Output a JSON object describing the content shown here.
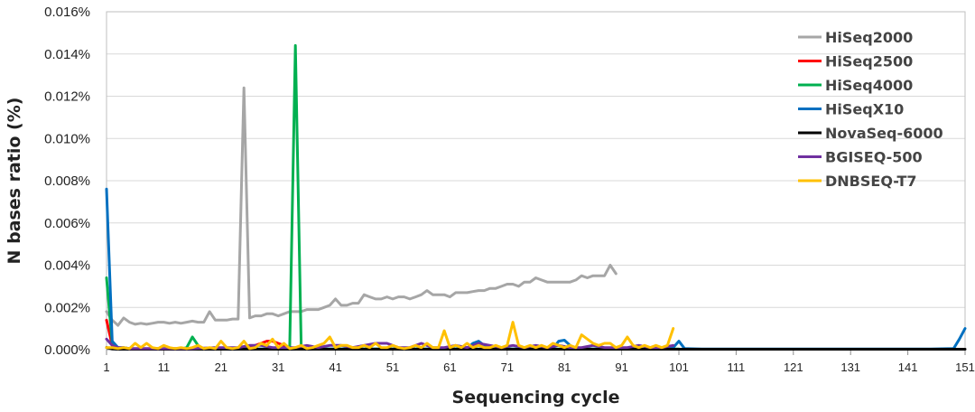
{
  "chart_data": {
    "type": "line",
    "xlabel": "Sequencing cycle",
    "ylabel": "N bases ratio (%)",
    "xlim": [
      1,
      151
    ],
    "ylim": [
      0,
      0.016
    ],
    "x_ticks": [
      "1",
      "11",
      "21",
      "31",
      "41",
      "51",
      "61",
      "71",
      "81",
      "91",
      "101",
      "111",
      "121",
      "131",
      "141",
      "151"
    ],
    "y_ticks": [
      "0.000%",
      "0.002%",
      "0.004%",
      "0.006%",
      "0.008%",
      "0.010%",
      "0.012%",
      "0.014%",
      "0.016%"
    ],
    "grid": "horizontal",
    "legend_position": "top-right",
    "series": [
      {
        "name": "HiSeq2000",
        "color": "#a6a6a6",
        "x": [
          1,
          2,
          3,
          4,
          5,
          6,
          7,
          8,
          9,
          10,
          11,
          12,
          13,
          14,
          15,
          16,
          17,
          18,
          19,
          20,
          21,
          22,
          23,
          24,
          25,
          26,
          27,
          28,
          29,
          30,
          31,
          32,
          33,
          34,
          35,
          36,
          37,
          38,
          39,
          40,
          41,
          42,
          43,
          44,
          45,
          46,
          47,
          48,
          49,
          50,
          51,
          52,
          53,
          54,
          55,
          56,
          57,
          58,
          59,
          60,
          61,
          62,
          63,
          64,
          65,
          66,
          67,
          68,
          69,
          70,
          71,
          72,
          73,
          74,
          75,
          76,
          77,
          78,
          79,
          80,
          81,
          82,
          83,
          84,
          85,
          86,
          87,
          88,
          89,
          90
        ],
        "y": [
          0.0018,
          0.0014,
          0.00115,
          0.0015,
          0.0013,
          0.0012,
          0.00125,
          0.0012,
          0.00125,
          0.0013,
          0.0013,
          0.00125,
          0.0013,
          0.00125,
          0.0013,
          0.00135,
          0.0013,
          0.0013,
          0.0018,
          0.0014,
          0.0014,
          0.0014,
          0.00145,
          0.00145,
          0.0124,
          0.0015,
          0.0016,
          0.0016,
          0.0017,
          0.0017,
          0.0016,
          0.0017,
          0.0018,
          0.0018,
          0.0018,
          0.0019,
          0.0019,
          0.0019,
          0.002,
          0.0021,
          0.0024,
          0.0021,
          0.0021,
          0.0022,
          0.0022,
          0.0026,
          0.0025,
          0.0024,
          0.0024,
          0.0025,
          0.0024,
          0.0025,
          0.0025,
          0.0024,
          0.0025,
          0.0026,
          0.0028,
          0.0026,
          0.0026,
          0.0026,
          0.0025,
          0.0027,
          0.0027,
          0.0027,
          0.00275,
          0.0028,
          0.0028,
          0.0029,
          0.0029,
          0.003,
          0.0031,
          0.0031,
          0.003,
          0.0032,
          0.0032,
          0.0034,
          0.0033,
          0.0032,
          0.0032,
          0.0032,
          0.0032,
          0.0032,
          0.0033,
          0.0035,
          0.0034,
          0.0035,
          0.0035,
          0.0035,
          0.004,
          0.0036
        ]
      },
      {
        "name": "HiSeq2500",
        "color": "#ff0000",
        "x": [
          1,
          2,
          3,
          4,
          5,
          6,
          7,
          8,
          9,
          10,
          12,
          14,
          16,
          18,
          20,
          22,
          24,
          26,
          27,
          28,
          29,
          30,
          31,
          32,
          33,
          34,
          36,
          38,
          40,
          42,
          44,
          46,
          48,
          50,
          55,
          60,
          65,
          70,
          75,
          80,
          85,
          90,
          95,
          100,
          101
        ],
        "y": [
          0.0014,
          0.0002,
          0.0001,
          5e-05,
          3e-05,
          3e-05,
          2e-05,
          2e-05,
          2e-05,
          2e-05,
          2e-05,
          2e-05,
          2e-05,
          2e-05,
          2e-05,
          2e-05,
          3e-05,
          0.0001,
          0.0002,
          0.0003,
          0.0004,
          0.0004,
          0.0003,
          0.0002,
          0.0001,
          5e-05,
          3e-05,
          2e-05,
          2e-05,
          2e-05,
          2e-05,
          2e-05,
          2e-05,
          2e-05,
          2e-05,
          2e-05,
          2e-05,
          2e-05,
          2e-05,
          2e-05,
          2e-05,
          2e-05,
          2e-05,
          2e-05,
          2e-05
        ]
      },
      {
        "name": "HiSeq4000",
        "color": "#00b050",
        "x": [
          1,
          2,
          3,
          4,
          5,
          6,
          8,
          10,
          12,
          14,
          15,
          16,
          17,
          18,
          20,
          22,
          24,
          26,
          28,
          30,
          32,
          33,
          34,
          35,
          36,
          38,
          40,
          45,
          50,
          55,
          60,
          65,
          70,
          75,
          80,
          85,
          90,
          95,
          100,
          101
        ],
        "y": [
          0.0034,
          0.0003,
          0.0001,
          5e-05,
          3e-05,
          3e-05,
          3e-05,
          3e-05,
          3e-05,
          3e-05,
          0.0001,
          0.0006,
          0.0002,
          3e-05,
          3e-05,
          3e-05,
          3e-05,
          3e-05,
          3e-05,
          3e-05,
          3e-05,
          0.0001,
          0.0144,
          0.0002,
          3e-05,
          3e-05,
          3e-05,
          3e-05,
          3e-05,
          3e-05,
          3e-05,
          3e-05,
          3e-05,
          3e-05,
          3e-05,
          3e-05,
          3e-05,
          3e-05,
          3e-05,
          3e-05
        ]
      },
      {
        "name": "HiSeqX10",
        "color": "#0070c0",
        "x": [
          1,
          2,
          3,
          4,
          5,
          6,
          8,
          10,
          15,
          20,
          25,
          30,
          35,
          40,
          45,
          50,
          55,
          60,
          64,
          65,
          66,
          67,
          68,
          70,
          75,
          79,
          80,
          81,
          82,
          83,
          85,
          90,
          95,
          100,
          101,
          102,
          105,
          110,
          115,
          120,
          125,
          130,
          135,
          140,
          145,
          149,
          150,
          151
        ],
        "y": [
          0.0076,
          0.0004,
          0.0001,
          0.0001,
          5e-05,
          3e-05,
          3e-05,
          3e-05,
          3e-05,
          3e-05,
          3e-05,
          3e-05,
          3e-05,
          3e-05,
          3e-05,
          3e-05,
          3e-05,
          3e-05,
          5e-05,
          0.0003,
          0.0004,
          0.0002,
          5e-05,
          3e-05,
          3e-05,
          5e-05,
          0.0004,
          0.00045,
          0.0002,
          5e-05,
          3e-05,
          3e-05,
          3e-05,
          0.0001,
          0.0004,
          5e-05,
          3e-05,
          3e-05,
          3e-05,
          3e-05,
          3e-05,
          3e-05,
          3e-05,
          3e-05,
          3e-05,
          5e-05,
          0.0005,
          0.001
        ]
      },
      {
        "name": "NovaSeq-6000",
        "color": "#000000",
        "x": [
          1,
          2,
          3,
          5,
          10,
          20,
          30,
          40,
          50,
          60,
          70,
          80,
          90,
          100,
          110,
          120,
          130,
          140,
          151
        ],
        "y": [
          0.0001,
          3e-05,
          2e-05,
          2e-05,
          2e-05,
          2e-05,
          2e-05,
          2e-05,
          2e-05,
          2e-05,
          2e-05,
          2e-05,
          2e-05,
          2e-05,
          2e-05,
          2e-05,
          2e-05,
          2e-05,
          2e-05
        ]
      },
      {
        "name": "BGISEQ-500",
        "color": "#7030a0",
        "x": [
          1,
          2,
          3,
          4,
          5,
          8,
          12,
          16,
          20,
          24,
          26,
          28,
          30,
          32,
          34,
          36,
          38,
          40,
          42,
          44,
          46,
          48,
          50,
          52,
          54,
          56,
          58,
          60,
          62,
          64,
          66,
          68,
          70,
          72,
          74,
          76,
          78,
          80,
          82,
          84,
          86,
          88,
          90,
          92,
          94,
          96,
          98,
          100
        ],
        "y": [
          0.0005,
          0.0002,
          0.0001,
          0.0001,
          5e-05,
          5e-05,
          5e-05,
          5e-05,
          0.0001,
          0.0001,
          0.0002,
          0.0002,
          0.0001,
          0.0001,
          0.0001,
          0.0002,
          0.0001,
          0.0002,
          0.0002,
          0.0001,
          0.0002,
          0.0003,
          0.0003,
          0.0001,
          0.0001,
          0.0003,
          0.0001,
          0.0001,
          0.0002,
          0.0001,
          0.0003,
          0.0002,
          0.0001,
          0.0002,
          0.0001,
          0.0002,
          0.0001,
          0.0002,
          0.0001,
          0.0001,
          0.0002,
          0.0001,
          0.0001,
          0.0001,
          0.0002,
          0.0001,
          0.0001,
          0.0002
        ]
      },
      {
        "name": "DNBSEQ-T7",
        "color": "#ffc000",
        "x": [
          1,
          2,
          3,
          4,
          5,
          6,
          7,
          8,
          9,
          10,
          11,
          12,
          13,
          14,
          15,
          16,
          17,
          18,
          19,
          20,
          21,
          22,
          23,
          24,
          25,
          26,
          27,
          28,
          29,
          30,
          31,
          32,
          33,
          34,
          35,
          36,
          37,
          38,
          39,
          40,
          41,
          42,
          43,
          44,
          45,
          46,
          47,
          48,
          49,
          50,
          51,
          52,
          53,
          54,
          55,
          56,
          57,
          58,
          59,
          60,
          61,
          62,
          63,
          64,
          65,
          66,
          67,
          68,
          69,
          70,
          71,
          72,
          73,
          74,
          75,
          76,
          77,
          78,
          79,
          80,
          81,
          82,
          83,
          84,
          85,
          86,
          87,
          88,
          89,
          90,
          91,
          92,
          93,
          94,
          95,
          96,
          97,
          98,
          99,
          100
        ],
        "y": [
          0.0001,
          0.0001,
          5e-05,
          0.0001,
          5e-05,
          0.0003,
          0.0001,
          0.0003,
          0.0001,
          5e-05,
          0.0002,
          0.0001,
          5e-05,
          0.0001,
          5e-05,
          0.0001,
          0.0002,
          5e-05,
          0.0001,
          5e-05,
          0.0004,
          0.0001,
          5e-05,
          0.0001,
          0.0004,
          5e-05,
          0.0001,
          0.0003,
          0.0002,
          0.0005,
          0.0001,
          0.0003,
          5e-05,
          0.0001,
          0.0002,
          5e-05,
          0.0001,
          0.0002,
          0.0003,
          0.0006,
          0.0001,
          0.0002,
          0.0002,
          0.0001,
          0.0001,
          0.0002,
          0.0001,
          0.0003,
          0.0001,
          0.0001,
          0.0002,
          0.0001,
          5e-05,
          0.0001,
          0.0002,
          0.0001,
          0.0003,
          0.0001,
          0.0001,
          0.0009,
          0.0001,
          0.0002,
          0.0001,
          0.0003,
          0.0001,
          0.0002,
          0.0001,
          0.0001,
          0.0002,
          0.0001,
          0.0002,
          0.0013,
          0.0002,
          0.0001,
          0.0002,
          0.0001,
          0.0002,
          0.0001,
          0.0003,
          0.0002,
          0.0001,
          0.0002,
          0.0001,
          0.0007,
          0.0005,
          0.0003,
          0.0002,
          0.0003,
          0.0003,
          0.0001,
          0.0002,
          0.0006,
          0.0002,
          0.0001,
          0.0002,
          0.0001,
          0.0002,
          0.0001,
          0.0002,
          0.001
        ]
      }
    ]
  }
}
